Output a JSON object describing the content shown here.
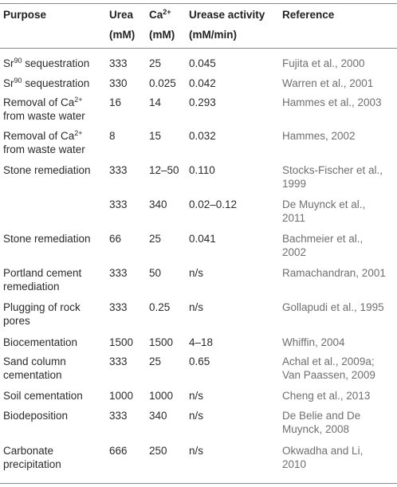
{
  "headers": {
    "purpose": "Purpose",
    "urea_line1": "Urea",
    "urea_line2": "(mM)",
    "ca_base": "Ca",
    "ca_sup": "2+",
    "ca_line2": "(mM)",
    "activity_line1": "Urease activity",
    "activity_line2": "(mM/min)",
    "reference": "Reference"
  },
  "rows": [
    {
      "p1": "Sr",
      "p1_sup": "90",
      "p1_tail": " sequestration",
      "urea": "333",
      "ca": "25",
      "act": "0.045",
      "ref1": "Fujita et al., 2000"
    },
    {
      "p1": "Sr",
      "p1_sup": "90",
      "p1_tail": " sequestration",
      "urea": "330",
      "ca": "0.025",
      "act": "0.042",
      "ref1": "Warren et al., 2001"
    },
    {
      "p1": "Removal of Ca",
      "p1_sup": "2+",
      "p2": "from waste water",
      "urea": "16",
      "ca": "14",
      "act": "0.293",
      "ref1": "Hammes et al., 2003"
    },
    {
      "p1": "Removal of Ca",
      "p1_sup": "2+",
      "p2": "from waste water",
      "urea": "8",
      "ca": "15",
      "act": "0.032",
      "ref1": "Hammes, 2002"
    },
    {
      "p1": "Stone remediation",
      "urea": "333",
      "ca": "12–50",
      "act": "0.110",
      "ref1": "Stocks-Fischer et al.,",
      "ref2": "1999"
    },
    {
      "urea": "333",
      "ca": "340",
      "act": "0.02–0.12",
      "ref1": "De Muynck et al.,",
      "ref2": "2011"
    },
    {
      "p1": "Stone remediation",
      "urea": "66",
      "ca": "25",
      "act": "0.041",
      "ref1": "Bachmeier et al.,",
      "ref2": "2002"
    },
    {
      "p1": "Portland cement",
      "p2": "remediation",
      "urea": "333",
      "ca": "50",
      "act": "n/s",
      "ref1": "Ramachandran, 2001"
    },
    {
      "p1": "Plugging of rock",
      "p2": "pores",
      "urea": "333",
      "ca": "0.25",
      "act": "n/s",
      "ref1": "Gollapudi et al., 1995"
    },
    {
      "p1": "Biocementation",
      "urea": "1500",
      "ca": "1500",
      "act": "4–18",
      "ref1": "Whiffin, 2004"
    },
    {
      "p1": "Sand column",
      "p2": "cementation",
      "urea": "333",
      "ca": "25",
      "act": "0.65",
      "ref1": "Achal et al., 2009a;",
      "ref2": "Van Paassen, 2009"
    },
    {
      "p1": "Soil cementation",
      "urea": "1000",
      "ca": "1000",
      "act": "n/s",
      "ref1": "Cheng et al., 2013"
    },
    {
      "p1": "Biodeposition",
      "urea": "333",
      "ca": "340",
      "act": "n/s",
      "ref1": "De Belie and De",
      "ref2": "Muynck, 2008"
    },
    {
      "p1": "Carbonate",
      "p2": "precipitation",
      "urea": "666",
      "ca": "250",
      "act": "n/s",
      "ref1": "Okwadha and Li,",
      "ref2": "2010"
    }
  ]
}
